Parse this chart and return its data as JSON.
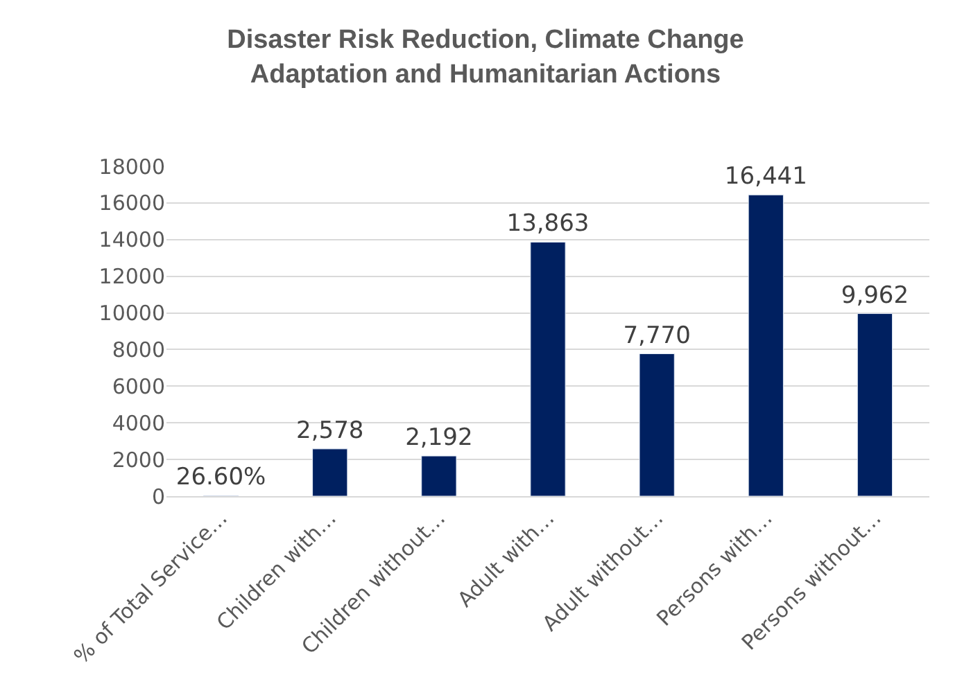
{
  "chart_data": {
    "type": "bar",
    "title": "Disaster Risk Reduction, Climate Change\nAdaptation and Humanitarian Actions",
    "categories": [
      "% of Total Service…",
      "Children with…",
      "Children without…",
      "Adult with…",
      "Adult without…",
      "Persons with…",
      "Persons without…"
    ],
    "values": [
      26.6,
      2578,
      2192,
      13863,
      7770,
      16441,
      9962
    ],
    "value_labels": [
      "26.60%",
      "2,578",
      "2,192",
      "13,863",
      "7,770",
      "16,441",
      "9,962"
    ],
    "color": "#002060",
    "ylim": [
      0,
      18000
    ],
    "yticks": [
      0,
      2000,
      4000,
      6000,
      8000,
      10000,
      12000,
      14000,
      16000,
      18000
    ],
    "grid": "y"
  }
}
